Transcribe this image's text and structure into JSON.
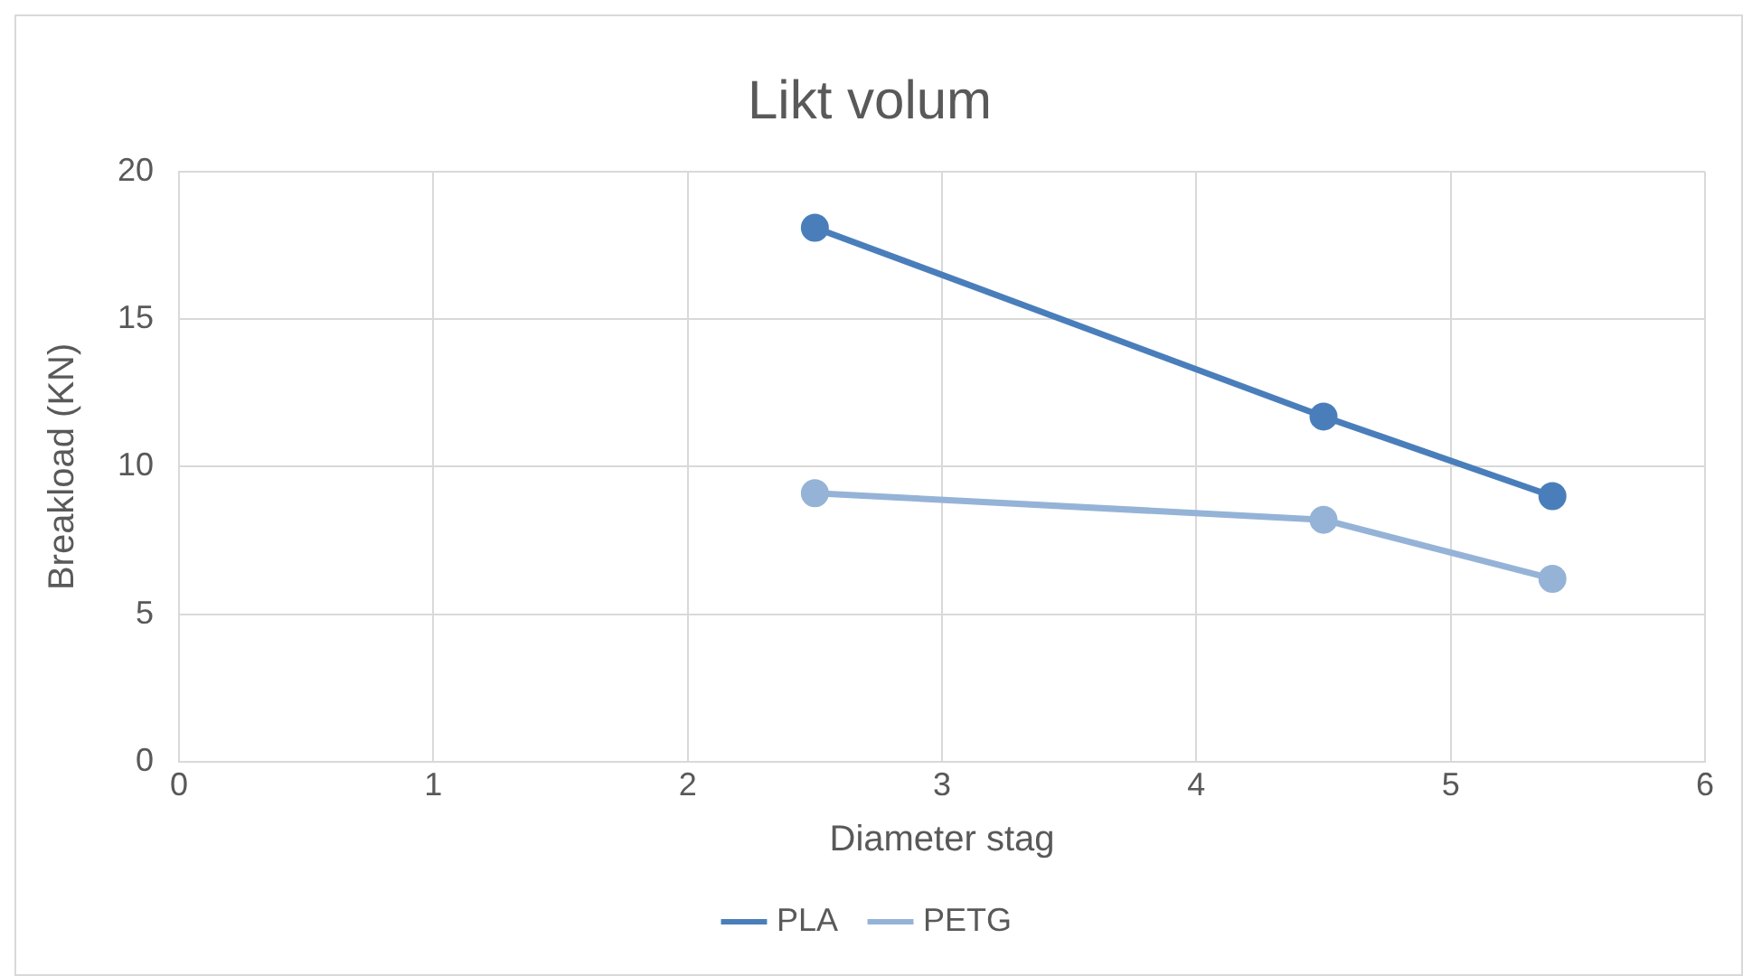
{
  "chart_data": {
    "type": "line",
    "title": "Likt volum",
    "xlabel": "Diameter stag",
    "ylabel": "Breakload (KN)",
    "series": [
      {
        "name": "PLA",
        "color": "#4a7ebb",
        "x": [
          2.5,
          4.5,
          5.4
        ],
        "values": [
          18.1,
          11.7,
          9.0
        ]
      },
      {
        "name": "PETG",
        "color": "#95b3d7",
        "x": [
          2.5,
          4.5,
          5.4
        ],
        "values": [
          9.1,
          8.2,
          6.2
        ]
      }
    ],
    "xlim": [
      0,
      6
    ],
    "xticks": [
      0,
      1,
      2,
      3,
      4,
      5,
      6
    ],
    "ylim": [
      0,
      20
    ],
    "yticks": [
      0,
      5,
      10,
      15,
      20
    ],
    "grid": true,
    "legend": "bottom",
    "marker": "circle",
    "line_style": "solid"
  }
}
